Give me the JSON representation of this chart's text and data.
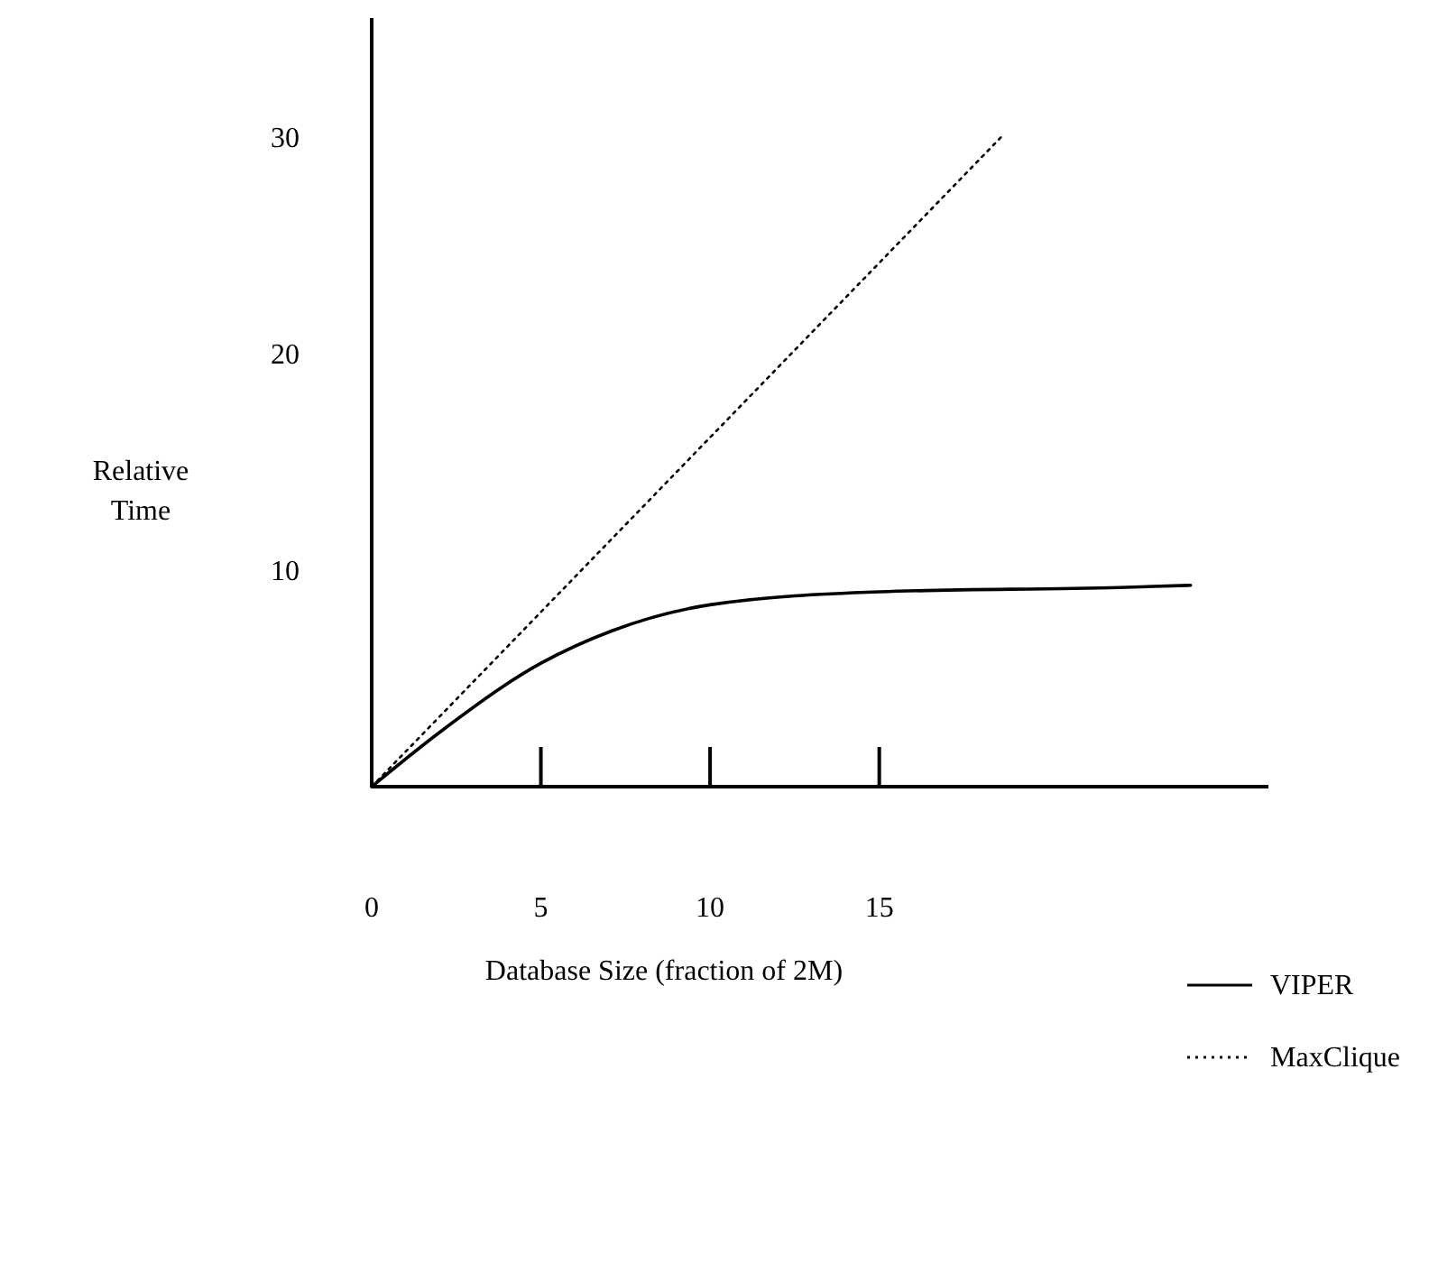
{
  "chart_data": {
    "type": "line",
    "xlabel": "Database Size (fraction of 2M)",
    "ylabel": "Relative Time",
    "xlim": [
      0,
      26.5
    ],
    "ylim": [
      0,
      35.5
    ],
    "xticks": [
      0,
      5,
      10,
      15
    ],
    "yticks": [
      10,
      20,
      30
    ],
    "legend": "bottom right",
    "grid": false,
    "marker": "none",
    "series": [
      {
        "name": "VIPER",
        "color": "#000000",
        "line_style": "solid",
        "x": [
          0,
          2,
          5,
          7.1,
          10,
          15,
          22.1,
          24.2
        ],
        "values": [
          0,
          2.5,
          5.7,
          7.2,
          8.4,
          9.0,
          9.2,
          9.3
        ]
      },
      {
        "name": "MaxClique",
        "color": "#000000",
        "line_style": "dotted",
        "x": [
          0,
          18.6
        ],
        "values": [
          0,
          30
        ]
      }
    ]
  }
}
